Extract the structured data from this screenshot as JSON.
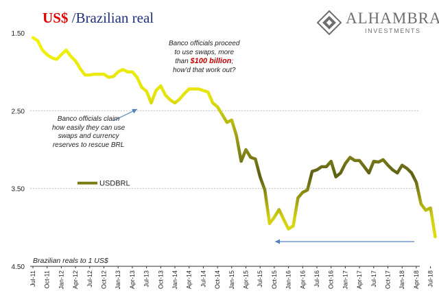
{
  "title": {
    "currency": "US$",
    "rest": " /Brazilian real"
  },
  "logo": {
    "name": "ALHAMBRA",
    "subtitle": "INVESTMENTS"
  },
  "annotations": {
    "swaps": {
      "line1": "Banco officials proceed",
      "line2": "to use swaps, more",
      "line3_pre": "than ",
      "line3_hl": "$100 billion",
      "line3_post": ";",
      "line4": "how'd that work out?"
    },
    "claim": {
      "line1": "Banco officials claim",
      "line2": "how easily they can use",
      "line3": "swaps and currency",
      "line4": "reserves to rescue BRL"
    }
  },
  "units_note": "Brazilian reals to 1 US$",
  "colors": {
    "line_top": "#f4f40a",
    "line_mid": "#5c5e14",
    "line_bottom": "#f4f40a",
    "arrow": "#4f81bd",
    "grid": "#c0c0c0"
  },
  "chart_data": {
    "type": "line",
    "y_inverted": true,
    "ylim": [
      1.5,
      4.5
    ],
    "y_ticks": [
      "1.50",
      "2.50",
      "3.50",
      "4.50"
    ],
    "x_tick_labels": [
      "Jul-11",
      "Oct-11",
      "Jan-12",
      "Apr-12",
      "Jul-12",
      "Oct-12",
      "Jan-13",
      "Apr-13",
      "Jul-13",
      "Oct-13",
      "Jan-14",
      "Apr-14",
      "Jul-14",
      "Oct-14",
      "Jan-15",
      "Apr-15",
      "Jul-15",
      "Oct-15",
      "Jan-16",
      "Apr-16",
      "Jul-16",
      "Oct-16",
      "Jan-17",
      "Apr-17",
      "Jul-17",
      "Oct-17",
      "Jan-18",
      "Apr-18",
      "Jul-18"
    ],
    "legend": {
      "label": "USDBRL",
      "position": "middle-left"
    },
    "grid": "horizontal",
    "series": [
      {
        "name": "USDBRL",
        "points": [
          [
            "Jul-11",
            1.56
          ],
          [
            "Aug-11",
            1.6
          ],
          [
            "Sep-11",
            1.72
          ],
          [
            "Oct-11",
            1.78
          ],
          [
            "Nov-11",
            1.82
          ],
          [
            "Dec-11",
            1.84
          ],
          [
            "Jan-12",
            1.78
          ],
          [
            "Feb-12",
            1.72
          ],
          [
            "Mar-12",
            1.8
          ],
          [
            "Apr-12",
            1.86
          ],
          [
            "May-12",
            1.96
          ],
          [
            "Jun-12",
            2.04
          ],
          [
            "Jul-12",
            2.04
          ],
          [
            "Aug-12",
            2.03
          ],
          [
            "Sep-12",
            2.03
          ],
          [
            "Oct-12",
            2.03
          ],
          [
            "Nov-12",
            2.07
          ],
          [
            "Dec-12",
            2.06
          ],
          [
            "Jan-13",
            2.0
          ],
          [
            "Feb-13",
            1.97
          ],
          [
            "Mar-13",
            2.0
          ],
          [
            "Apr-13",
            2.0
          ],
          [
            "May-13",
            2.07
          ],
          [
            "Jun-13",
            2.2
          ],
          [
            "Jul-13",
            2.25
          ],
          [
            "Aug-13",
            2.4
          ],
          [
            "Sep-13",
            2.24
          ],
          [
            "Oct-13",
            2.18
          ],
          [
            "Nov-13",
            2.3
          ],
          [
            "Dec-13",
            2.36
          ],
          [
            "Jan-14",
            2.4
          ],
          [
            "Feb-14",
            2.35
          ],
          [
            "Mar-14",
            2.28
          ],
          [
            "Apr-14",
            2.22
          ],
          [
            "May-14",
            2.22
          ],
          [
            "Jun-14",
            2.22
          ],
          [
            "Jul-14",
            2.24
          ],
          [
            "Aug-14",
            2.26
          ],
          [
            "Sep-14",
            2.4
          ],
          [
            "Oct-14",
            2.45
          ],
          [
            "Nov-14",
            2.55
          ],
          [
            "Dec-14",
            2.65
          ],
          [
            "Jan-15",
            2.62
          ],
          [
            "Feb-15",
            2.82
          ],
          [
            "Mar-15",
            3.15
          ],
          [
            "Apr-15",
            3.0
          ],
          [
            "May-15",
            3.1
          ],
          [
            "Jun-15",
            3.12
          ],
          [
            "Jul-15",
            3.35
          ],
          [
            "Aug-15",
            3.52
          ],
          [
            "Sep-15",
            3.95
          ],
          [
            "Oct-15",
            3.87
          ],
          [
            "Nov-15",
            3.77
          ],
          [
            "Dec-15",
            3.9
          ],
          [
            "Jan-16",
            4.02
          ],
          [
            "Feb-16",
            3.98
          ],
          [
            "Mar-16",
            3.62
          ],
          [
            "Apr-16",
            3.55
          ],
          [
            "May-16",
            3.52
          ],
          [
            "Jun-16",
            3.28
          ],
          [
            "Jul-16",
            3.26
          ],
          [
            "Aug-16",
            3.22
          ],
          [
            "Sep-16",
            3.22
          ],
          [
            "Oct-16",
            3.15
          ],
          [
            "Nov-16",
            3.35
          ],
          [
            "Dec-16",
            3.3
          ],
          [
            "Jan-17",
            3.18
          ],
          [
            "Feb-17",
            3.1
          ],
          [
            "Mar-17",
            3.14
          ],
          [
            "Apr-17",
            3.14
          ],
          [
            "May-17",
            3.22
          ],
          [
            "Jun-17",
            3.3
          ],
          [
            "Jul-17",
            3.15
          ],
          [
            "Aug-17",
            3.16
          ],
          [
            "Sep-17",
            3.13
          ],
          [
            "Oct-17",
            3.2
          ],
          [
            "Nov-17",
            3.26
          ],
          [
            "Dec-17",
            3.3
          ],
          [
            "Jan-18",
            3.2
          ],
          [
            "Feb-18",
            3.24
          ],
          [
            "Mar-18",
            3.3
          ],
          [
            "Apr-18",
            3.42
          ],
          [
            "May-18",
            3.7
          ],
          [
            "Jun-18",
            3.78
          ],
          [
            "Jul-18",
            3.75
          ],
          [
            "Aug-18",
            4.12
          ]
        ]
      }
    ]
  }
}
